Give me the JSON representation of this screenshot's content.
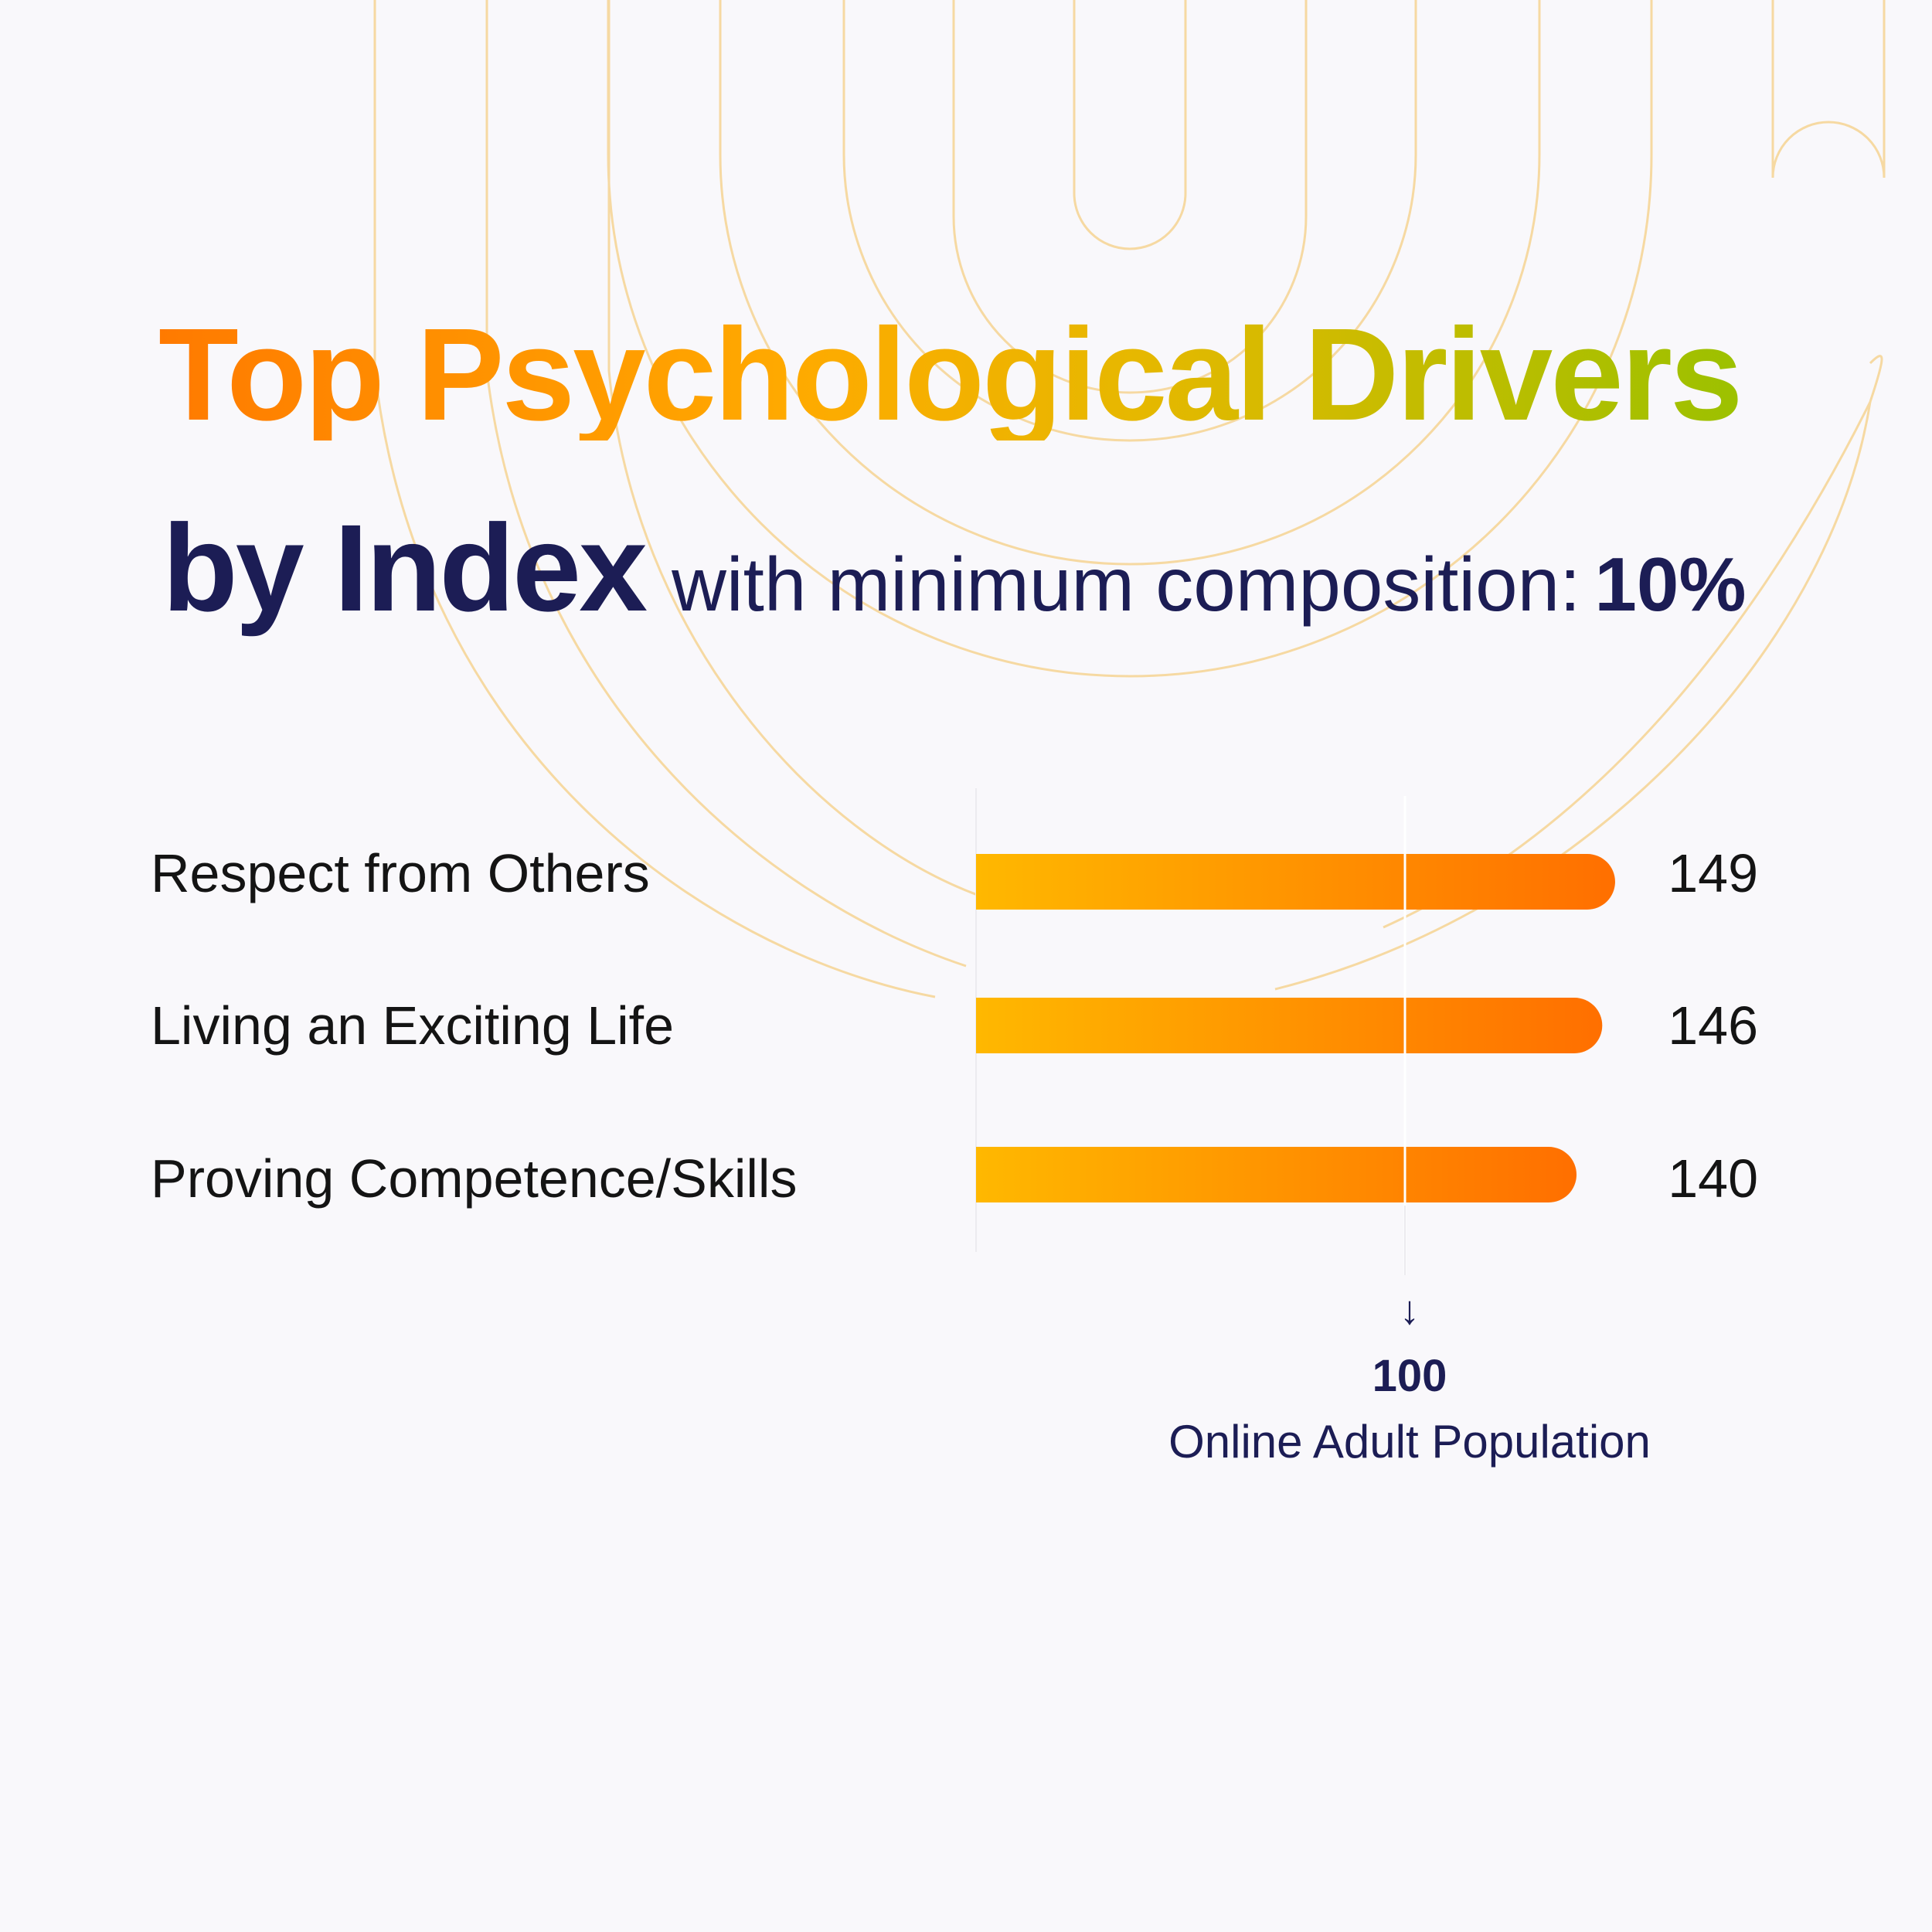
{
  "header": {
    "title": "Top Psychological Drivers",
    "subtitle_main": "by Index",
    "subtitle_rest": "with minimum composition:",
    "subtitle_pct": "10%"
  },
  "chart_data": {
    "type": "bar",
    "orientation": "horizontal",
    "categories": [
      "Respect from Others",
      "Living an Exciting Life",
      "Proving Competence/Skills"
    ],
    "values": [
      149,
      146,
      140
    ],
    "value_labels": [
      "149",
      "146",
      "140"
    ],
    "xlim": [
      0,
      150
    ],
    "reference_line": {
      "value": 100,
      "value_label": "100",
      "label": "Online Adult Population"
    },
    "colors": {
      "bar_start": "#ffb800",
      "bar_end": "#ff6f00"
    }
  }
}
